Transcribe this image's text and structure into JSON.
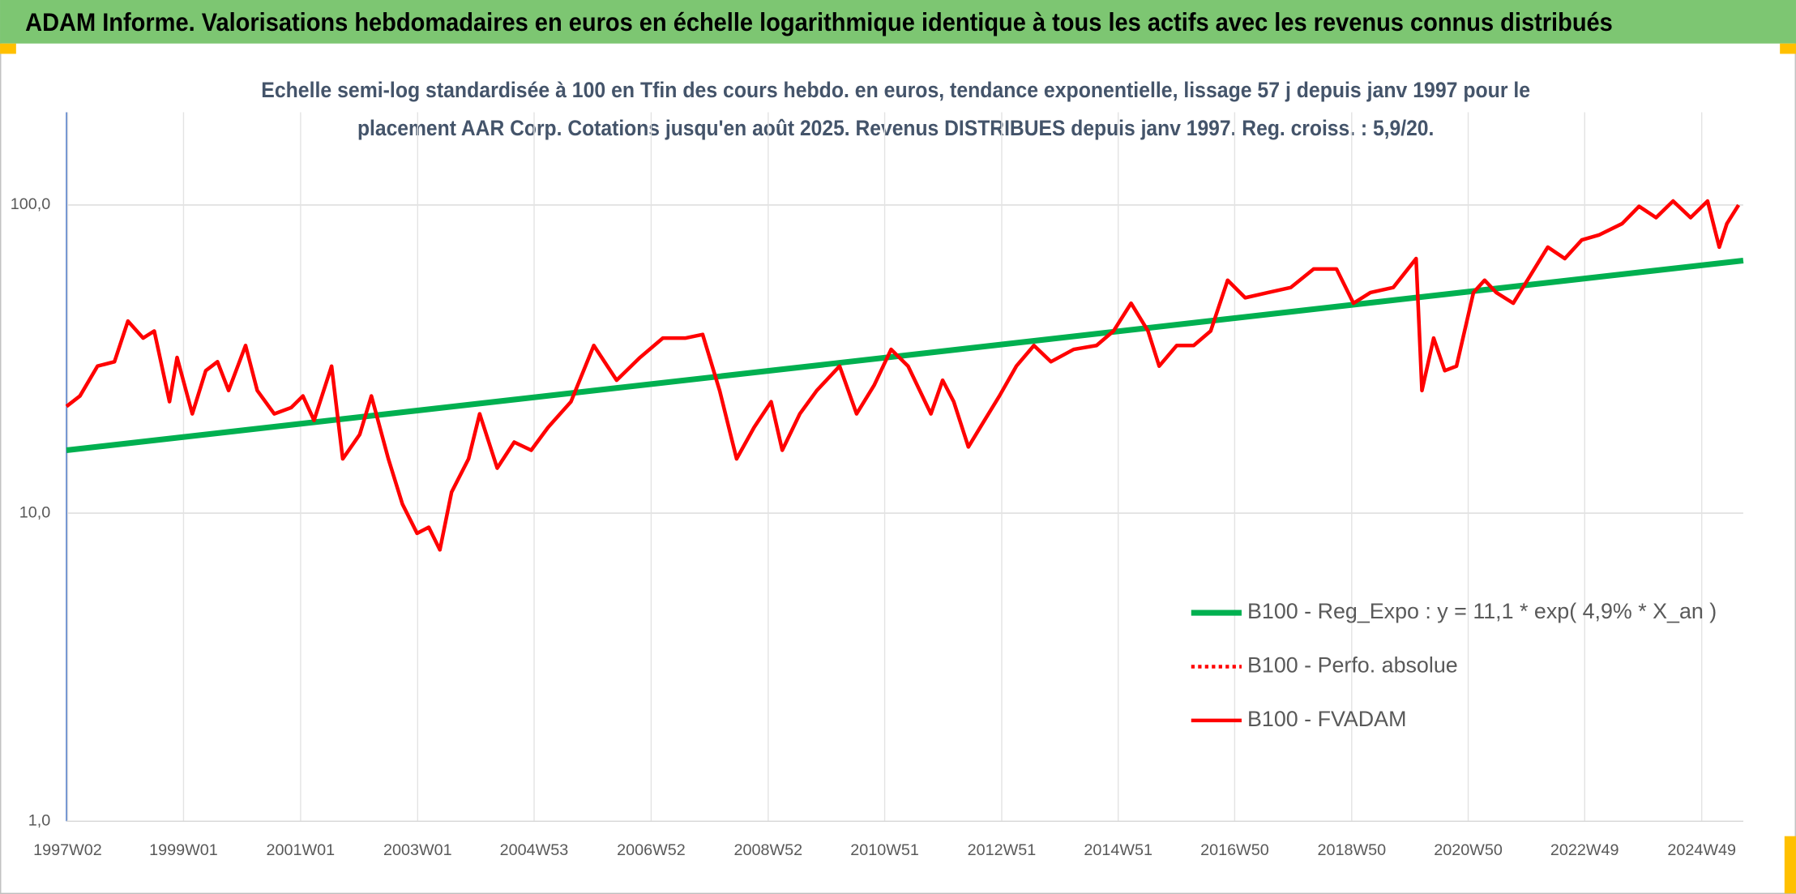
{
  "chart_data": {
    "type": "line",
    "title": "ADAM Informe. Valorisations hebdomadaires en euros en échelle logarithmique identique à tous les actifs avec les revenus connus distribués",
    "subtitle": [
      "Echelle semi-log standardisée à 100 en Tfin des cours hebdo. en euros, tendance exponentielle, lissage 57 j depuis janv 1997 pour le",
      "placement AAR Corp. Cotations jusqu'en août 2025. Revenus DISTRIBUES depuis janv 1997. Reg. croiss. : 5,9/20."
    ],
    "log_scale": true,
    "grid": true,
    "legend": "right",
    "xlim": [
      1997.0,
      2025.65
    ],
    "xticks": [
      {
        "value": 1997.02,
        "label": "1997W02"
      },
      {
        "value": 1999.0,
        "label": "1999W01"
      },
      {
        "value": 2001.0,
        "label": "2001W01"
      },
      {
        "value": 2003.0,
        "label": "2003W01"
      },
      {
        "value": 2004.99,
        "label": "2004W53"
      },
      {
        "value": 2006.99,
        "label": "2006W52"
      },
      {
        "value": 2008.99,
        "label": "2008W52"
      },
      {
        "value": 2010.98,
        "label": "2010W51"
      },
      {
        "value": 2012.98,
        "label": "2012W51"
      },
      {
        "value": 2014.97,
        "label": "2014W51"
      },
      {
        "value": 2016.96,
        "label": "2016W50"
      },
      {
        "value": 2018.96,
        "label": "2018W50"
      },
      {
        "value": 2020.95,
        "label": "2020W50"
      },
      {
        "value": 2022.94,
        "label": "2022W49"
      },
      {
        "value": 2024.94,
        "label": "2024W49"
      }
    ],
    "ylim": [
      1,
      200
    ],
    "yticks": [
      {
        "value": 1,
        "label": "1,0"
      },
      {
        "value": 10,
        "label": "10,0"
      },
      {
        "value": 100,
        "label": "100,0"
      }
    ],
    "series": [
      {
        "name": "B100 - Reg_Expo : y = 11,1 * exp( 4,9% *  X_an )",
        "color": "#00b050",
        "style": "solid",
        "x": [
          1997.0,
          2025.65
        ],
        "values": [
          16,
          66
        ]
      },
      {
        "name": "B100 - Perfo. absolue",
        "color": "#ff0000",
        "style": "dotted"
      },
      {
        "name": "B100 - FVADAM",
        "color": "#ff0000",
        "style": "solid",
        "x": [
          1997.0,
          1997.23,
          1997.53,
          1997.82,
          1998.05,
          1998.31,
          1998.5,
          1998.76,
          1998.89,
          1999.15,
          1999.38,
          1999.58,
          1999.77,
          2000.06,
          2000.26,
          2000.55,
          2000.84,
          2001.04,
          2001.23,
          2001.53,
          2001.72,
          2002.01,
          2002.21,
          2002.5,
          2002.74,
          2002.99,
          2003.19,
          2003.38,
          2003.58,
          2003.87,
          2004.06,
          2004.36,
          2004.65,
          2004.94,
          2005.23,
          2005.62,
          2006.01,
          2006.4,
          2006.8,
          2007.19,
          2007.58,
          2007.87,
          2008.16,
          2008.45,
          2008.75,
          2009.04,
          2009.23,
          2009.53,
          2009.82,
          2010.21,
          2010.5,
          2010.8,
          2011.09,
          2011.38,
          2011.77,
          2011.97,
          2012.16,
          2012.41,
          2012.65,
          2012.94,
          2013.23,
          2013.53,
          2013.82,
          2014.21,
          2014.6,
          2014.89,
          2015.19,
          2015.48,
          2015.67,
          2015.97,
          2016.26,
          2016.55,
          2016.84,
          2017.14,
          2017.53,
          2017.92,
          2018.31,
          2018.7,
          2018.99,
          2019.28,
          2019.67,
          2020.06,
          2020.16,
          2020.36,
          2020.55,
          2020.75,
          2021.04,
          2021.23,
          2021.43,
          2021.72,
          2022.01,
          2022.31,
          2022.6,
          2022.89,
          2023.19,
          2023.58,
          2023.87,
          2024.16,
          2024.45,
          2024.75,
          2025.04,
          2025.24,
          2025.37,
          2025.57
        ],
        "values": [
          22.2,
          24,
          30,
          31,
          42,
          37,
          39,
          23,
          32,
          21,
          29,
          31,
          25,
          35,
          25,
          21,
          22,
          24,
          20,
          30,
          15,
          18,
          24,
          15,
          10.7,
          8.6,
          9,
          7.6,
          11.7,
          15,
          21,
          14,
          17,
          16,
          19,
          23,
          35,
          27,
          32,
          37,
          37,
          38,
          25,
          15,
          19,
          23,
          16,
          21,
          25,
          30,
          21,
          26,
          34,
          30,
          21,
          27,
          23,
          16.4,
          19.5,
          24,
          30,
          35,
          31,
          34,
          35,
          39,
          48,
          39,
          30,
          35,
          35,
          39,
          57,
          50,
          52,
          54,
          62,
          62,
          48,
          52,
          54,
          67,
          25,
          37,
          29,
          30,
          52,
          57,
          52,
          48,
          59,
          73,
          67,
          77,
          80,
          87,
          99,
          91,
          103,
          91,
          103,
          73,
          87,
          100
        ]
      }
    ]
  }
}
